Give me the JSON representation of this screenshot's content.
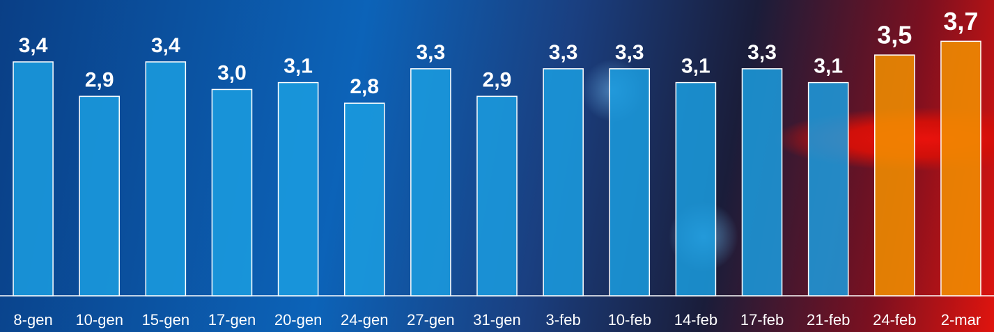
{
  "chart_data": {
    "type": "bar",
    "categories": [
      "8-gen",
      "10-gen",
      "15-gen",
      "17-gen",
      "20-gen",
      "24-gen",
      "27-gen",
      "31-gen",
      "3-feb",
      "10-feb",
      "14-feb",
      "17-feb",
      "21-feb",
      "24-feb",
      "2-mar"
    ],
    "values": [
      3.4,
      2.9,
      3.4,
      3.0,
      3.1,
      2.8,
      3.3,
      2.9,
      3.3,
      3.3,
      3.1,
      3.3,
      3.1,
      3.5,
      3.7
    ],
    "value_labels": [
      "3,4",
      "2,9",
      "3,4",
      "3,0",
      "3,1",
      "2,8",
      "3,3",
      "2,9",
      "3,3",
      "3,3",
      "3,1",
      "3,3",
      "3,1",
      "3,5",
      "3,7"
    ],
    "colors": [
      "#1b9ee0",
      "#1b9ee0",
      "#1b9ee0",
      "#1b9ee0",
      "#1b9ee0",
      "#1b9ee0",
      "#1b9ee0",
      "#1b9ee0",
      "#1b9ee0",
      "#1b9ee0",
      "#1b9ee0",
      "#1b9ee0",
      "#1b9ee0",
      "#f39200",
      "#f39200"
    ],
    "ylim": [
      0,
      4.3
    ]
  }
}
